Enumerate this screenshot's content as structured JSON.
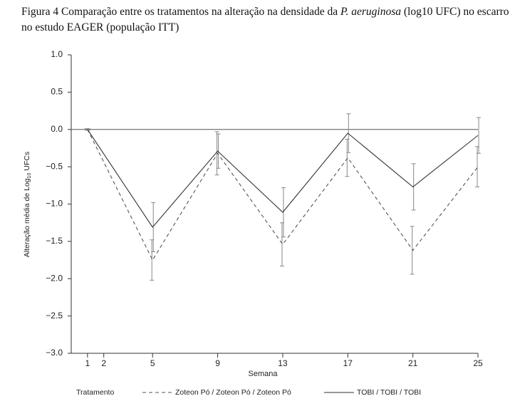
{
  "chart_data": {
    "type": "line",
    "title": {
      "prefix": "Figura 4 Comparação entre os tratamentos na alteração na densidade da",
      "italic": "P. aeruginosa",
      "suffix": "(log10 UFC) no escarro no estudo EAGER (população ITT)"
    },
    "y_label": {
      "main": "Alteração média de Log",
      "sub": "10",
      "end": "UFCs"
    },
    "x_label": "Semana",
    "legend_title": "Tratamento",
    "x": [
      1,
      5,
      9,
      13,
      17,
      21,
      25
    ],
    "series": [
      {
        "name": "Zoteon Pó / Zoteon Pó / Zoteon Pó",
        "color": "#555555",
        "dashed": true,
        "values": [
          0,
          -1.75,
          -0.32,
          -1.54,
          -0.38,
          -1.62,
          -0.5
        ],
        "errors": [
          0.01,
          0.27,
          0.29,
          0.29,
          0.25,
          0.32,
          0.27
        ]
      },
      {
        "name": "TOBI / TOBI / TOBI",
        "color": "#333333",
        "dashed": false,
        "values": [
          0,
          -1.31,
          -0.29,
          -1.11,
          -0.05,
          -0.77,
          -0.08
        ],
        "errors": [
          0.01,
          0.33,
          0.23,
          0.33,
          0.26,
          0.31,
          0.24
        ]
      }
    ],
    "xlim": [
      0,
      25
    ],
    "ylim": [
      -3,
      1
    ],
    "xticks": [
      1,
      2,
      5,
      9,
      13,
      17,
      21,
      25
    ],
    "yticks": [
      {
        "value": -3,
        "label": "−3.0"
      },
      {
        "value": -2.5,
        "label": "−2.5"
      },
      {
        "value": -2,
        "label": "−2.0"
      },
      {
        "value": -1.5,
        "label": "−1.5"
      },
      {
        "value": -1,
        "label": "−1.0"
      },
      {
        "value": -0.5,
        "label": "−0.5"
      },
      {
        "value": 0,
        "label": "0.0"
      },
      {
        "value": 0.5,
        "label": "0.5"
      },
      {
        "value": 1,
        "label": "1.0"
      }
    ],
    "reference_line": 0
  }
}
